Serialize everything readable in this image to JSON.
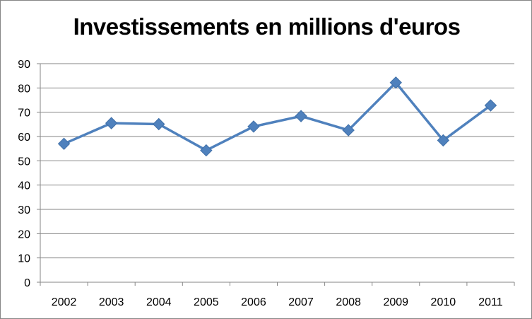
{
  "chart_data": {
    "type": "line",
    "title": "Investissements en millions d'euros",
    "xlabel": "",
    "ylabel": "",
    "categories": [
      "2002",
      "2003",
      "2004",
      "2005",
      "2006",
      "2007",
      "2008",
      "2009",
      "2010",
      "2011"
    ],
    "series": [
      {
        "name": "Investissements",
        "values": [
          57.0,
          65.5,
          65.1,
          54.3,
          64.1,
          68.4,
          62.6,
          82.2,
          58.4,
          72.8
        ],
        "color": "#4F81BD",
        "marker": "diamond"
      }
    ],
    "ylim": [
      0,
      90
    ],
    "yticks": [
      0,
      10,
      20,
      30,
      40,
      50,
      60,
      70,
      80,
      90
    ],
    "grid": true,
    "legend": "none"
  }
}
